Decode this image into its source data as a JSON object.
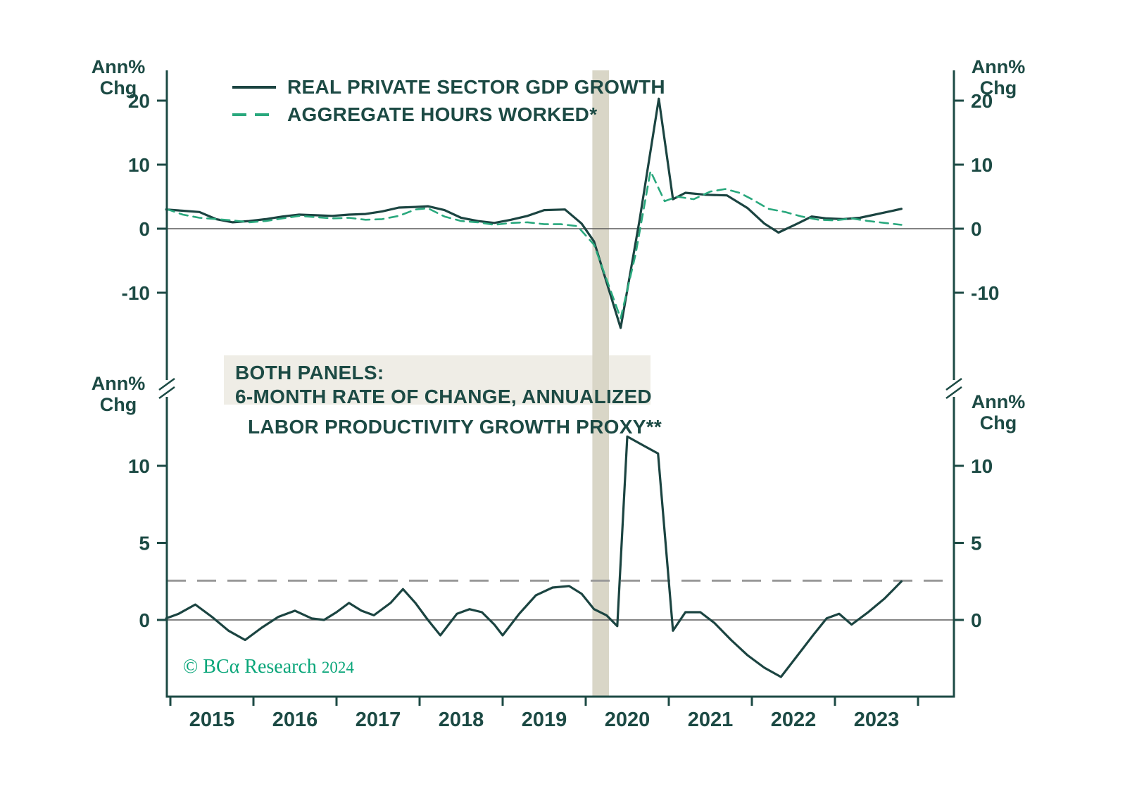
{
  "colors": {
    "dark_line": "#1b4441",
    "text": "#1c4a44",
    "green_line": "#29a87d",
    "band": "#d9d6c7",
    "annotation_bg": "#efede6",
    "zero_line": "#5a5a5a",
    "average_line": "#9a9a9a",
    "copyright_green": "#0aa67a"
  },
  "axis_units": {
    "line1": "Ann%",
    "line2": "Chg"
  },
  "x_axis": {
    "year_labels": [
      "2015",
      "2016",
      "2017",
      "2018",
      "2019",
      "2020",
      "2021",
      "2022",
      "2023"
    ],
    "tick_years": [
      2015,
      2016,
      2017,
      2018,
      2019,
      2020,
      2021,
      2022,
      2023,
      2024
    ]
  },
  "annotation": {
    "line1": "BOTH PANELS:",
    "line2": "6-MONTH RATE OF CHANGE, ANNUALIZED"
  },
  "copyright": {
    "symbol": "©",
    "brand": "BCα Research",
    "year": "2024"
  },
  "chart_data": [
    {
      "type": "line",
      "panel": "top",
      "ylabel": "Ann% Chg",
      "yticks": [
        20,
        10,
        0,
        -10
      ],
      "ylim": [
        -24,
        26
      ],
      "grid": false,
      "legend_position": "top-left",
      "recession_band_x": [
        2020.08,
        2020.28
      ],
      "zero_line": 0,
      "series": [
        {
          "name": "REAL PRIVATE SECTOR GDP GROWTH",
          "style": "solid",
          "color": "#1b4441",
          "points": [
            [
              2014.95,
              3.0
            ],
            [
              2015.15,
              2.8
            ],
            [
              2015.35,
              2.6
            ],
            [
              2015.55,
              1.5
            ],
            [
              2015.75,
              1.0
            ],
            [
              2015.95,
              1.2
            ],
            [
              2016.15,
              1.5
            ],
            [
              2016.35,
              1.9
            ],
            [
              2016.55,
              2.2
            ],
            [
              2016.75,
              2.1
            ],
            [
              2016.95,
              2.0
            ],
            [
              2017.15,
              2.2
            ],
            [
              2017.35,
              2.3
            ],
            [
              2017.55,
              2.7
            ],
            [
              2017.75,
              3.3
            ],
            [
              2017.95,
              3.4
            ],
            [
              2018.1,
              3.5
            ],
            [
              2018.3,
              2.9
            ],
            [
              2018.5,
              1.7
            ],
            [
              2018.7,
              1.2
            ],
            [
              2018.9,
              0.9
            ],
            [
              2019.1,
              1.4
            ],
            [
              2019.3,
              2.0
            ],
            [
              2019.5,
              2.9
            ],
            [
              2019.75,
              3.0
            ],
            [
              2019.95,
              0.8
            ],
            [
              2020.1,
              -2.0
            ],
            [
              2020.42,
              -15.5
            ],
            [
              2020.65,
              1.5
            ],
            [
              2020.88,
              20.3
            ],
            [
              2021.05,
              4.6
            ],
            [
              2021.2,
              5.6
            ],
            [
              2021.45,
              5.3
            ],
            [
              2021.7,
              5.2
            ],
            [
              2021.95,
              3.2
            ],
            [
              2022.15,
              0.8
            ],
            [
              2022.32,
              -0.6
            ],
            [
              2022.55,
              0.8
            ],
            [
              2022.72,
              1.9
            ],
            [
              2022.9,
              1.6
            ],
            [
              2023.1,
              1.5
            ],
            [
              2023.3,
              1.7
            ],
            [
              2023.55,
              2.4
            ],
            [
              2023.8,
              3.1
            ]
          ]
        },
        {
          "name": "AGGREGATE HOURS WORKED*",
          "style": "dashed",
          "color": "#29a87d",
          "points": [
            [
              2014.95,
              3.1
            ],
            [
              2015.15,
              2.2
            ],
            [
              2015.35,
              1.7
            ],
            [
              2015.55,
              1.5
            ],
            [
              2015.75,
              1.3
            ],
            [
              2015.95,
              1.0
            ],
            [
              2016.15,
              1.2
            ],
            [
              2016.35,
              1.6
            ],
            [
              2016.55,
              2.0
            ],
            [
              2016.75,
              1.8
            ],
            [
              2016.95,
              1.6
            ],
            [
              2017.15,
              1.7
            ],
            [
              2017.35,
              1.4
            ],
            [
              2017.55,
              1.5
            ],
            [
              2017.75,
              2.0
            ],
            [
              2017.95,
              3.0
            ],
            [
              2018.1,
              3.2
            ],
            [
              2018.3,
              1.9
            ],
            [
              2018.5,
              1.2
            ],
            [
              2018.7,
              1.0
            ],
            [
              2018.9,
              0.6
            ],
            [
              2019.1,
              0.9
            ],
            [
              2019.3,
              1.0
            ],
            [
              2019.5,
              0.7
            ],
            [
              2019.7,
              0.7
            ],
            [
              2019.9,
              0.4
            ],
            [
              2020.1,
              -2.5
            ],
            [
              2020.42,
              -14.0
            ],
            [
              2020.6,
              -4.0
            ],
            [
              2020.78,
              9.0
            ],
            [
              2020.95,
              4.3
            ],
            [
              2021.1,
              5.0
            ],
            [
              2021.3,
              4.6
            ],
            [
              2021.5,
              5.8
            ],
            [
              2021.68,
              6.2
            ],
            [
              2021.85,
              5.6
            ],
            [
              2022.0,
              4.6
            ],
            [
              2022.2,
              3.1
            ],
            [
              2022.4,
              2.6
            ],
            [
              2022.6,
              1.9
            ],
            [
              2022.8,
              1.4
            ],
            [
              2023.0,
              1.3
            ],
            [
              2023.2,
              1.6
            ],
            [
              2023.4,
              1.2
            ],
            [
              2023.6,
              0.9
            ],
            [
              2023.8,
              0.6
            ]
          ]
        }
      ]
    },
    {
      "type": "line",
      "panel": "bottom",
      "title": "LABOR PRODUCTIVITY GROWTH PROXY**",
      "ylabel": "Ann% Chg",
      "yticks": [
        10,
        5,
        0
      ],
      "ylim": [
        -5,
        14.5
      ],
      "grid": false,
      "reference_line": 2.55,
      "zero_line": 0,
      "series": [
        {
          "name": "LABOR PRODUCTIVITY GROWTH PROXY",
          "style": "solid",
          "color": "#1b4441",
          "points": [
            [
              2014.95,
              0.1
            ],
            [
              2015.1,
              0.4
            ],
            [
              2015.3,
              1.0
            ],
            [
              2015.5,
              0.2
            ],
            [
              2015.7,
              -0.7
            ],
            [
              2015.9,
              -1.3
            ],
            [
              2016.1,
              -0.5
            ],
            [
              2016.3,
              0.2
            ],
            [
              2016.5,
              0.6
            ],
            [
              2016.7,
              0.1
            ],
            [
              2016.85,
              0.0
            ],
            [
              2017.0,
              0.5
            ],
            [
              2017.15,
              1.1
            ],
            [
              2017.3,
              0.6
            ],
            [
              2017.45,
              0.3
            ],
            [
              2017.65,
              1.1
            ],
            [
              2017.8,
              2.0
            ],
            [
              2017.95,
              1.1
            ],
            [
              2018.1,
              0.0
            ],
            [
              2018.25,
              -1.0
            ],
            [
              2018.45,
              0.4
            ],
            [
              2018.6,
              0.7
            ],
            [
              2018.75,
              0.5
            ],
            [
              2018.9,
              -0.3
            ],
            [
              2019.0,
              -1.0
            ],
            [
              2019.2,
              0.4
            ],
            [
              2019.4,
              1.6
            ],
            [
              2019.6,
              2.1
            ],
            [
              2019.8,
              2.2
            ],
            [
              2019.95,
              1.7
            ],
            [
              2020.1,
              0.7
            ],
            [
              2020.25,
              0.3
            ],
            [
              2020.38,
              -0.4
            ],
            [
              2020.5,
              11.9
            ],
            [
              2020.7,
              11.3
            ],
            [
              2020.87,
              10.8
            ],
            [
              2021.05,
              -0.7
            ],
            [
              2021.2,
              0.5
            ],
            [
              2021.38,
              0.5
            ],
            [
              2021.55,
              -0.2
            ],
            [
              2021.75,
              -1.3
            ],
            [
              2021.95,
              -2.3
            ],
            [
              2022.15,
              -3.1
            ],
            [
              2022.35,
              -3.7
            ],
            [
              2022.55,
              -2.3
            ],
            [
              2022.75,
              -0.9
            ],
            [
              2022.9,
              0.1
            ],
            [
              2023.05,
              0.4
            ],
            [
              2023.2,
              -0.3
            ],
            [
              2023.4,
              0.5
            ],
            [
              2023.6,
              1.4
            ],
            [
              2023.8,
              2.5
            ]
          ]
        }
      ]
    }
  ]
}
